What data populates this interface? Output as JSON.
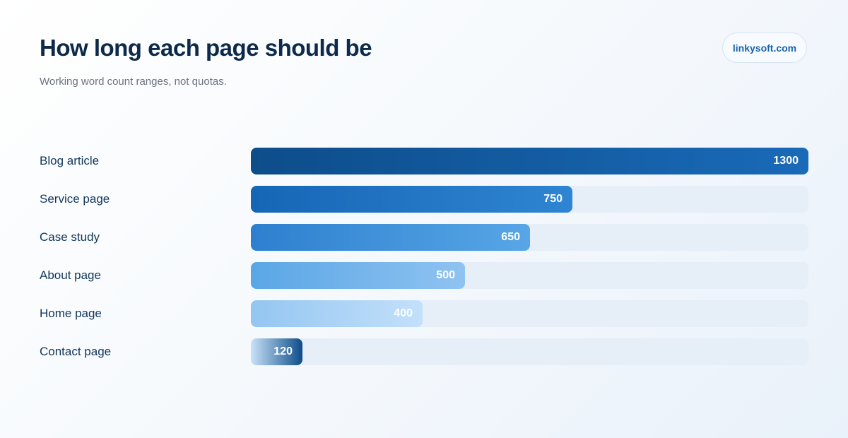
{
  "header": {
    "title": "How long each page should be",
    "subtitle": "Working word count ranges, not quotas.",
    "brand": "linkysoft.com"
  },
  "chart_data": {
    "type": "bar",
    "orientation": "horizontal",
    "title": "How long each page should be",
    "subtitle": "Working word count ranges, not quotas.",
    "xlabel": "",
    "ylabel": "",
    "categories": [
      "Blog article",
      "Service page",
      "Case study",
      "About page",
      "Home page",
      "Contact page"
    ],
    "values": [
      1300,
      750,
      650,
      500,
      400,
      120
    ],
    "xlim": [
      0,
      1300
    ],
    "grid": false,
    "data_labels": true,
    "colors": {
      "track": "#e6eef8",
      "bars": [
        [
          "#0d4d8a",
          "#1a6ab8"
        ],
        [
          "#1666b6",
          "#2f85d2"
        ],
        [
          "#2d80cf",
          "#58a6e6"
        ],
        [
          "#5aa6e6",
          "#8fc3f1"
        ],
        [
          "#94c6f1",
          "#c3e0fa"
        ],
        [
          "#c9e2f8",
          "#0d4d8a"
        ]
      ]
    }
  }
}
